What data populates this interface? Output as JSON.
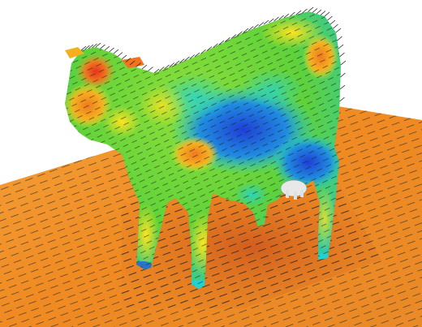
{
  "image": {
    "subject": "cow-cfd-surface-flow-visualization",
    "colors": {
      "background": "#ffffff",
      "hot": "#e8321e",
      "warm": "#f59a22",
      "mid": "#ffe31f",
      "green": "#5fd23a",
      "cyan": "#1fd3d9",
      "cold": "#1f5de0",
      "vector": "#1a1a1a"
    }
  }
}
